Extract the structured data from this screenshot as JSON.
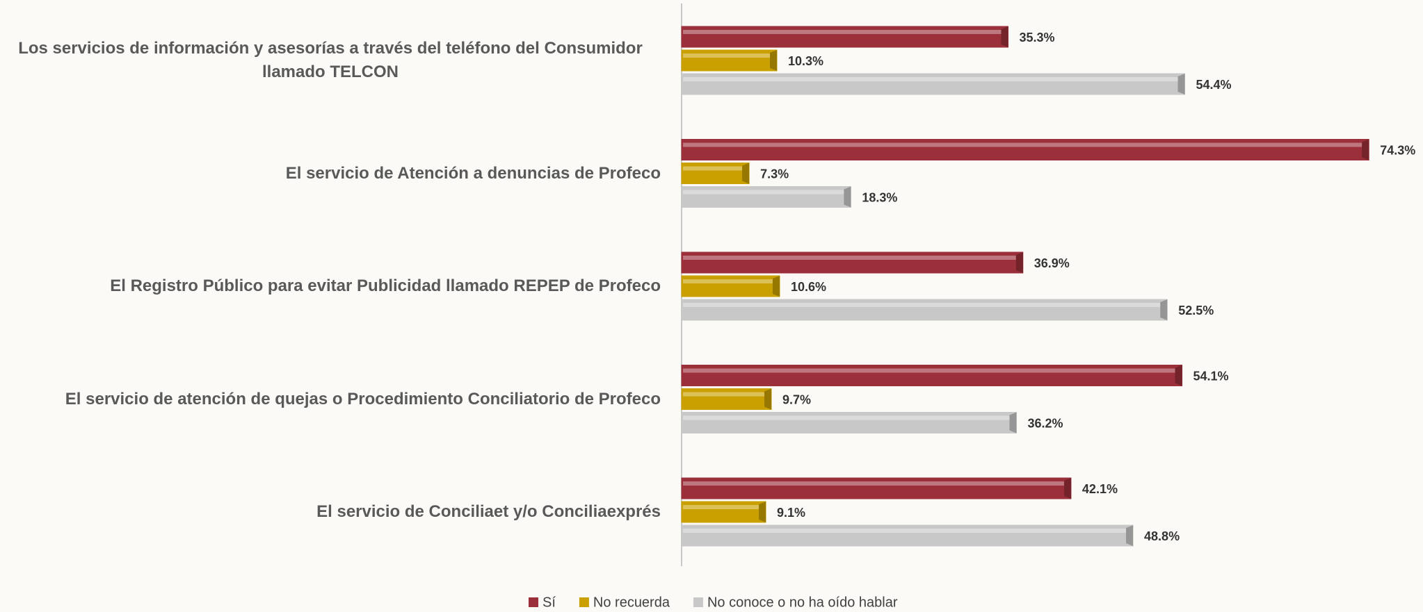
{
  "chart_data": {
    "type": "bar",
    "orientation": "horizontal",
    "categories": [
      "Los servicios de información y asesorías a través del teléfono del Consumidor llamado TELCON",
      "El servicio de Atención a denuncias de Profeco",
      "El Registro Público para evitar Publicidad llamado REPEP de Profeco",
      "El servicio de atención de quejas o Procedimiento Conciliatorio de Profeco",
      "El servicio de Conciliaet y/o Conciliaexprés"
    ],
    "series": [
      {
        "name": "Sí",
        "color": "#9b2f3a",
        "values": [
          35.3,
          74.3,
          36.9,
          54.1,
          42.1
        ],
        "value_labels": [
          "35.3%",
          "74.3%",
          "36.9%",
          "54.1%",
          "42.1%"
        ]
      },
      {
        "name": "No recuerda",
        "color": "#c9a000",
        "values": [
          10.3,
          7.3,
          10.6,
          9.7,
          9.1
        ],
        "value_labels": [
          "10.3%",
          "7.3%",
          "10.6%",
          "9.7%",
          "9.1%"
        ]
      },
      {
        "name": "No conoce o no ha oído hablar",
        "color": "#c8c8c8",
        "values": [
          54.4,
          18.3,
          52.5,
          36.2,
          48.8
        ],
        "value_labels": [
          "54.4%",
          "18.3%",
          "52.5%",
          "36.2%",
          "48.8%"
        ]
      }
    ],
    "xlim": [
      0,
      80
    ],
    "legend": "bottom"
  }
}
